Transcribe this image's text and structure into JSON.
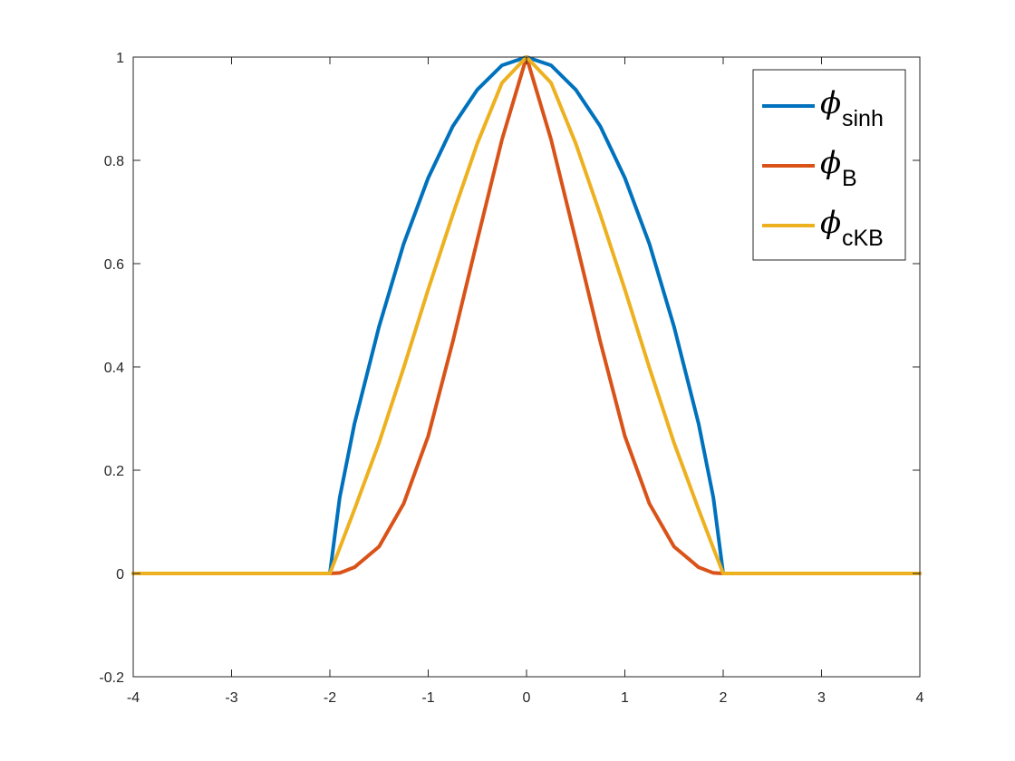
{
  "chart_data": {
    "type": "line",
    "title": "",
    "xlabel": "",
    "ylabel": "",
    "xlim": [
      -4,
      4
    ],
    "ylim": [
      -0.2,
      1
    ],
    "x_ticks": [
      -4,
      -3,
      -2,
      -1,
      0,
      1,
      2,
      3,
      4
    ],
    "y_ticks": [
      -0.2,
      0,
      0.2,
      0.4,
      0.6,
      0.8,
      1
    ],
    "x_tick_labels": [
      "-4",
      "-3",
      "-2",
      "-1",
      "0",
      "1",
      "2",
      "3",
      "4"
    ],
    "y_tick_labels": [
      "-0.2",
      "0",
      "0.2",
      "0.4",
      "0.6",
      "0.8",
      "1"
    ],
    "grid": false,
    "box": true,
    "legend_position": "top-right",
    "x": [
      -4,
      -2,
      -1.9,
      -1.75,
      -1.5,
      -1.25,
      -1,
      -0.75,
      -0.5,
      -0.25,
      0,
      0.25,
      0.5,
      0.75,
      1,
      1.25,
      1.5,
      1.75,
      1.9,
      2,
      4
    ],
    "series": [
      {
        "name": "sinh",
        "legend_symbol": "ϕ",
        "legend_subscript": "sinh",
        "color": "#0072BD",
        "values": [
          0,
          0,
          0.147,
          0.29,
          0.478,
          0.638,
          0.766,
          0.866,
          0.937,
          0.984,
          1,
          0.984,
          0.937,
          0.866,
          0.766,
          0.638,
          0.478,
          0.29,
          0.147,
          0,
          0
        ]
      },
      {
        "name": "B",
        "legend_symbol": "ϕ",
        "legend_subscript": "B",
        "color": "#D95319",
        "values": [
          0,
          0,
          0.001,
          0.012,
          0.052,
          0.135,
          0.266,
          0.449,
          0.646,
          0.84,
          1,
          0.84,
          0.646,
          0.449,
          0.266,
          0.135,
          0.052,
          0.012,
          0.001,
          0,
          0
        ]
      },
      {
        "name": "cKB",
        "legend_symbol": "ϕ",
        "legend_subscript": "cKB",
        "color": "#EDB120",
        "values": [
          0,
          0,
          0.049,
          0.124,
          0.253,
          0.398,
          0.55,
          0.695,
          0.833,
          0.95,
          1,
          0.95,
          0.833,
          0.695,
          0.55,
          0.398,
          0.253,
          0.124,
          0.049,
          0,
          0
        ]
      }
    ]
  }
}
